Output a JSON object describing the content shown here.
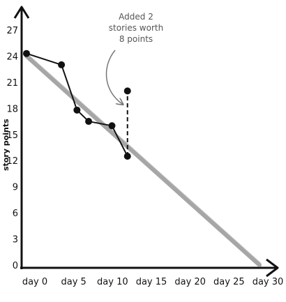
{
  "chart_data": {
    "type": "line",
    "title": "",
    "xlabel": "",
    "ylabel": "story points",
    "xlim": [
      0,
      30
    ],
    "ylim": [
      0,
      27
    ],
    "x_ticks": [
      0,
      5,
      10,
      15,
      20,
      25,
      30
    ],
    "x_tick_labels": [
      "day 0",
      "day 5",
      "day 10",
      "day 15",
      "day 20",
      "day 25",
      "day 30"
    ],
    "y_ticks": [
      0,
      3,
      6,
      9,
      12,
      15,
      18,
      21,
      24,
      27
    ],
    "y_tick_labels": [
      "0",
      "3",
      "6",
      "9",
      "12",
      "15",
      "18",
      "21",
      "24",
      "27"
    ],
    "grid": false,
    "series": [
      {
        "color": "#111111",
        "style": "solid-with-markers",
        "x": [
          0,
          4.5,
          6.5,
          8,
          11,
          13
        ],
        "y": [
          24.3,
          23,
          17.8,
          16.5,
          16,
          12.5
        ]
      },
      {
        "color": "#111111",
        "style": "dashed",
        "x": [
          13,
          13
        ],
        "y": [
          12.5,
          20
        ]
      },
      {
        "color": "#888888",
        "style": "solid-thick",
        "x": [
          0,
          30
        ],
        "y": [
          24,
          0
        ]
      }
    ],
    "extra_points": [
      {
        "x": 13,
        "y": 20
      }
    ],
    "annotations": [
      {
        "lines": [
          "Added 2",
          "stories worth",
          "8 points"
        ],
        "points_to": {
          "x": 12,
          "y": 18
        }
      }
    ]
  }
}
